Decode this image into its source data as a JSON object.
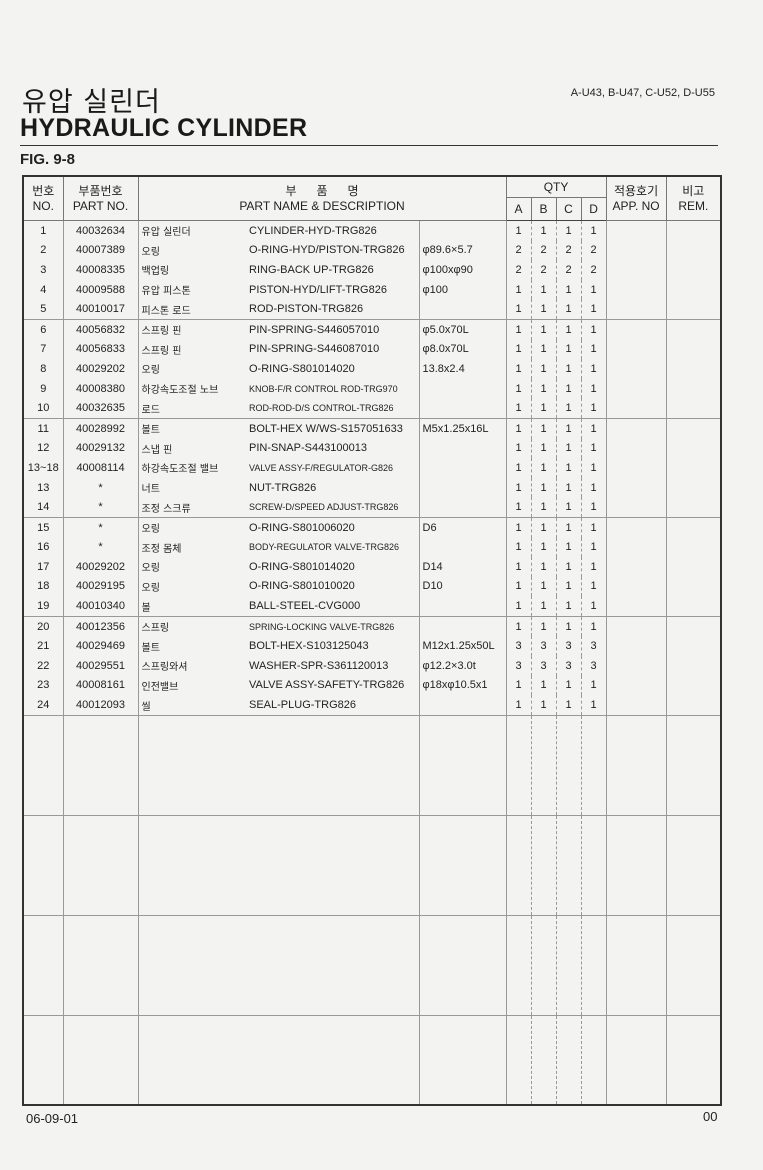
{
  "header": {
    "title_ko": "유압 실린더",
    "title_en": "HYDRAULIC CYLINDER",
    "models": "A-U43, B-U47, C-U52, D-U55",
    "figure": "FIG. 9-8"
  },
  "table": {
    "headers": {
      "no_ko": "번호",
      "no_en": "NO.",
      "part_ko": "부품번호",
      "part_en": "PART NO.",
      "name_ko": "부      품      명",
      "name_en": "PART NAME & DESCRIPTION",
      "qty": "QTY",
      "a": "A",
      "b": "B",
      "c": "C",
      "d": "D",
      "app_ko": "적용호기",
      "app_en": "APP. NO",
      "rem_ko": "비고",
      "rem_en": "REM."
    },
    "rows": [
      {
        "no": "1",
        "part": "40032634",
        "ko": "유압 실린더",
        "en": "CYLINDER-HYD-TRG826",
        "spec": "",
        "qty": [
          "1",
          "1",
          "1",
          "1"
        ]
      },
      {
        "no": "2",
        "part": "40007389",
        "ko": "오링",
        "en": "O-RING-HYD/PISTON-TRG826",
        "spec": "φ89.6×5.7",
        "qty": [
          "2",
          "2",
          "2",
          "2"
        ]
      },
      {
        "no": "3",
        "part": "40008335",
        "ko": "백업링",
        "en": "RING-BACK UP-TRG826",
        "spec": "φ100xφ90",
        "qty": [
          "2",
          "2",
          "2",
          "2"
        ]
      },
      {
        "no": "4",
        "part": "40009588",
        "ko": "유압 피스톤",
        "en": "PISTON-HYD/LIFT-TRG826",
        "spec": "φ100",
        "qty": [
          "1",
          "1",
          "1",
          "1"
        ]
      },
      {
        "no": "5",
        "part": "40010017",
        "ko": "피스톤 로드",
        "en": "ROD-PISTON-TRG826",
        "spec": "",
        "qty": [
          "1",
          "1",
          "1",
          "1"
        ]
      },
      {
        "no": "6",
        "part": "40056832",
        "ko": "스프링 핀",
        "en": "PIN-SPRING-S446057010",
        "spec": "φ5.0x70L",
        "qty": [
          "1",
          "1",
          "1",
          "1"
        ]
      },
      {
        "no": "7",
        "part": "40056833",
        "ko": "스프링 핀",
        "en": "PIN-SPRING-S446087010",
        "spec": "φ8.0x70L",
        "qty": [
          "1",
          "1",
          "1",
          "1"
        ]
      },
      {
        "no": "8",
        "part": "40029202",
        "ko": "오링",
        "en": "O-RING-S801014020",
        "spec": "13.8x2.4",
        "qty": [
          "1",
          "1",
          "1",
          "1"
        ]
      },
      {
        "no": "9",
        "part": "40008380",
        "ko": "하강속도조절 노브",
        "en": "KNOB-F/R CONTROL ROD-TRG970",
        "spec": "",
        "qty": [
          "1",
          "1",
          "1",
          "1"
        ],
        "small": true
      },
      {
        "no": "10",
        "part": "40032635",
        "ko": "로드",
        "en": "ROD-ROD-D/S CONTROL-TRG826",
        "spec": "",
        "qty": [
          "1",
          "1",
          "1",
          "1"
        ],
        "small": true
      },
      {
        "no": "11",
        "part": "40028992",
        "ko": "볼트",
        "en": "BOLT-HEX W/WS-S157051633",
        "spec": "M5x1.25x16L",
        "qty": [
          "1",
          "1",
          "1",
          "1"
        ]
      },
      {
        "no": "12",
        "part": "40029132",
        "ko": "스냅 핀",
        "en": "PIN-SNAP-S443100013",
        "spec": "",
        "qty": [
          "1",
          "1",
          "1",
          "1"
        ]
      },
      {
        "no": "13~18",
        "part": "40008114",
        "ko": "하강속도조절 밸브",
        "en": "VALVE ASSY-F/REGULATOR-G826",
        "spec": "",
        "qty": [
          "1",
          "1",
          "1",
          "1"
        ],
        "small": true
      },
      {
        "no": "13",
        "part": "*",
        "ko": "너트",
        "en": "NUT-TRG826",
        "spec": "",
        "qty": [
          "1",
          "1",
          "1",
          "1"
        ]
      },
      {
        "no": "14",
        "part": "*",
        "ko": "조정 스크류",
        "en": "SCREW-D/SPEED ADJUST-TRG826",
        "spec": "",
        "qty": [
          "1",
          "1",
          "1",
          "1"
        ],
        "small": true
      },
      {
        "no": "15",
        "part": "*",
        "ko": "오링",
        "en": "O-RING-S801006020",
        "spec": "D6",
        "qty": [
          "1",
          "1",
          "1",
          "1"
        ]
      },
      {
        "no": "16",
        "part": "*",
        "ko": "조정 몸체",
        "en": "BODY-REGULATOR VALVE-TRG826",
        "spec": "",
        "qty": [
          "1",
          "1",
          "1",
          "1"
        ],
        "small": true
      },
      {
        "no": "17",
        "part": "40029202",
        "ko": "오링",
        "en": "O-RING-S801014020",
        "spec": "D14",
        "qty": [
          "1",
          "1",
          "1",
          "1"
        ]
      },
      {
        "no": "18",
        "part": "40029195",
        "ko": "오링",
        "en": "O-RING-S801010020",
        "spec": "D10",
        "qty": [
          "1",
          "1",
          "1",
          "1"
        ]
      },
      {
        "no": "19",
        "part": "40010340",
        "ko": "볼",
        "en": "BALL-STEEL-CVG000",
        "spec": "",
        "qty": [
          "1",
          "1",
          "1",
          "1"
        ]
      },
      {
        "no": "20",
        "part": "40012356",
        "ko": "스프링",
        "en": "SPRING-LOCKING VALVE-TRG826",
        "spec": "",
        "qty": [
          "1",
          "1",
          "1",
          "1"
        ],
        "small": true
      },
      {
        "no": "21",
        "part": "40029469",
        "ko": "볼트",
        "en": "BOLT-HEX-S103125043",
        "spec": "M12x1.25x50L",
        "qty": [
          "3",
          "3",
          "3",
          "3"
        ]
      },
      {
        "no": "22",
        "part": "40029551",
        "ko": "스프링와셔",
        "en": "WASHER-SPR-S361120013",
        "spec": "φ12.2×3.0t",
        "qty": [
          "3",
          "3",
          "3",
          "3"
        ]
      },
      {
        "no": "23",
        "part": "40008161",
        "ko": "인전밸브",
        "en": "VALVE ASSY-SAFETY-TRG826",
        "spec": "φ18xφ10.5x1",
        "qty": [
          "1",
          "1",
          "1",
          "1"
        ]
      },
      {
        "no": "24",
        "part": "40012093",
        "ko": "씰",
        "en": "SEAL-PLUG-TRG826",
        "spec": "",
        "qty": [
          "1",
          "1",
          "1",
          "1"
        ]
      }
    ]
  },
  "footer": {
    "date": "06-09-01",
    "page": "00"
  }
}
